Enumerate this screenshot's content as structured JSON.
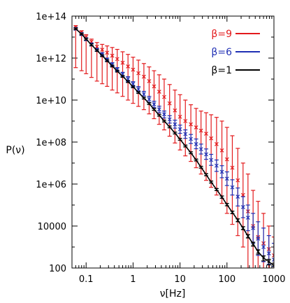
{
  "chart_data": {
    "type": "line",
    "title": "",
    "xlabel": "ν[Hz]",
    "ylabel": "P(ν)",
    "xscale": "log",
    "yscale": "log",
    "xlim": [
      0.05,
      1000
    ],
    "ylim": [
      100,
      100000000000000
    ],
    "grid": false,
    "legend_position": "top-right",
    "x_ticks": [
      {
        "value": 0.1,
        "label": "0.1"
      },
      {
        "value": 1,
        "label": "1"
      },
      {
        "value": 10,
        "label": "10"
      },
      {
        "value": 100,
        "label": "100"
      },
      {
        "value": 1000,
        "label": "1000"
      }
    ],
    "y_ticks": [
      {
        "value": 100,
        "label": "100"
      },
      {
        "value": 10000,
        "label": "10000"
      },
      {
        "value": 1000000,
        "label": "1e+06"
      },
      {
        "value": 100000000,
        "label": "1e+08"
      },
      {
        "value": 10000000000,
        "label": "1e+10"
      },
      {
        "value": 1000000000000,
        "label": "1e+12"
      },
      {
        "value": 100000000000000,
        "label": "1e+14"
      }
    ],
    "series": [
      {
        "name": "β=9",
        "color": "#e31a1c",
        "style": "errorbars",
        "x": [
          0.06,
          0.08,
          0.1,
          0.13,
          0.17,
          0.22,
          0.28,
          0.36,
          0.46,
          0.6,
          0.78,
          1.0,
          1.3,
          1.7,
          2.2,
          2.8,
          3.6,
          4.6,
          6.0,
          7.8,
          10,
          13,
          17,
          22,
          28,
          36,
          46,
          60,
          78,
          100,
          130,
          170,
          220,
          280,
          360,
          460,
          600,
          780,
          1000
        ],
        "y": [
          30000000000000.0,
          17000000000000.0,
          10000000000000.0,
          6000000000000.0,
          3500000000000.0,
          2500000000000.0,
          1800000000000.0,
          1300000000000.0,
          900000000000.0,
          600000000000.0,
          400000000000.0,
          280000000000.0,
          190000000000.0,
          130000000000.0,
          80000000000.0,
          45000000000.0,
          25000000000.0,
          14000000000.0,
          7000000000.0,
          3200000000.0,
          1600000000.0,
          1000000000.0,
          700000000.0,
          500000000.0,
          350000000.0,
          250000000.0,
          150000000.0,
          80000000.0,
          40000000.0,
          15000000.0,
          6000000.0,
          1500000.0,
          300000.0,
          50000.0,
          10000.0,
          3000.0,
          1500.0,
          800,
          400
        ],
        "err_lo": [
          350000000000.0,
          250000000000.0,
          180000000000.0,
          120000000000.0,
          80000000000.0,
          60000000000.0,
          45000000000.0,
          30000000000.0,
          22000000000.0,
          15000000000.0,
          10000000000.0,
          7000000000.0,
          5000000000.0,
          3500000000.0,
          2200000000.0,
          1300000000.0,
          700000000.0,
          380000000.0,
          190000000.0,
          90000000.0,
          42000000.0,
          22000000.0,
          12000000.0,
          6000000.0,
          3000000.0,
          1500000.0,
          700000.0,
          300000.0,
          120000.0,
          40000.0,
          12000.0,
          3500.0,
          1000.0,
          100,
          100,
          100,
          100,
          100,
          100
        ],
        "err_hi": [
          35000000000000.0,
          20000000000000.0,
          13000000000000.0,
          8000000000000.0,
          5500000000000.0,
          4500000000000.0,
          3800000000000.0,
          3200000000000.0,
          2600000000000.0,
          2000000000000.0,
          1500000000000.0,
          1100000000000.0,
          800000000000.0,
          550000000000.0,
          380000000000.0,
          250000000000.0,
          160000000000.0,
          100000000000.0,
          55000000000.0,
          30000000000.0,
          18000000000.0,
          10000000000.0,
          6000000000.0,
          4000000000.0,
          3000000000.0,
          2500000000.0,
          2000000000.0,
          1500000000.0,
          1000000000.0,
          500000000.0,
          200000000.0,
          50000000.0,
          10000000.0,
          3000000.0,
          500000.0,
          150000.0,
          40000.0,
          10000.0,
          3000.0
        ]
      },
      {
        "name": "β=6",
        "color": "#1f2fb4",
        "style": "errorbars",
        "x": [
          0.06,
          0.08,
          0.1,
          0.13,
          0.17,
          0.22,
          0.28,
          0.36,
          0.46,
          0.6,
          0.78,
          1.0,
          1.3,
          1.7,
          2.2,
          2.8,
          3.6,
          4.6,
          6.0,
          7.8,
          10,
          13,
          17,
          22,
          28,
          36,
          46,
          60,
          78,
          100,
          130,
          170,
          220,
          280,
          360,
          460,
          600,
          780,
          1000
        ],
        "y": [
          25000000000000.0,
          14000000000000.0,
          8000000000000.0,
          4500000000000.0,
          2500000000000.0,
          1500000000000.0,
          850000000000.0,
          500000000000.0,
          290000000000.0,
          170000000000.0,
          100000000000.0,
          58000000000.0,
          33000000000.0,
          19000000000.0,
          11000000000.0,
          6300000000.0,
          3600000000.0,
          2100000000.0,
          1200000000.0,
          700000000.0,
          410000000.0,
          240000000.0,
          140000000.0,
          80000000.0,
          46000000.0,
          26000000.0,
          14000000.0,
          7500000.0,
          3800000.0,
          1800000.0,
          700000.0,
          250000.0,
          80000.0,
          25000.0,
          8000.0,
          2500.0,
          1000.0,
          500,
          250
        ],
        "err_lo": [
          22000000000000.0,
          12000000000000.0,
          6800000000000.0,
          3800000000000.0,
          2100000000000.0,
          1200000000000.0,
          700000000000.0,
          410000000000.0,
          230000000000.0,
          130000000000.0,
          75000000000.0,
          43000000000.0,
          24000000000.0,
          14000000000.0,
          7800000000.0,
          4400000000.0,
          2500000000.0,
          1400000000.0,
          800000000.0,
          460000000.0,
          260000000.0,
          150000000.0,
          85000000.0,
          48000000.0,
          27000000.0,
          15000000.0,
          7800000.0,
          4000000.0,
          2000000.0,
          850000.0,
          300000.0,
          90000.0,
          25000.0,
          6000.0,
          1500.0,
          400,
          200,
          150,
          120
        ],
        "err_hi": [
          28000000000000.0,
          16000000000000.0,
          9200000000000.0,
          5200000000000.0,
          2900000000000.0,
          1800000000000.0,
          1000000000000.0,
          600000000000.0,
          350000000000.0,
          210000000000.0,
          130000000000.0,
          75000000000.0,
          44000000000.0,
          26000000000.0,
          15000000000.0,
          8800000000.0,
          5100000000.0,
          3000000000.0,
          1800000000.0,
          1100000000.0,
          640000000.0,
          380000000.0,
          230000000.0,
          140000000.0,
          80000000.0,
          47000000.0,
          26000000.0,
          14000000.0,
          7500000.0,
          3800000.0,
          1600000.0,
          650000.0,
          250000.0,
          100000.0,
          40000.0,
          16000.0,
          8000.0,
          3500.0,
          1500.0
        ]
      },
      {
        "name": "β=1",
        "color": "#000000",
        "style": "line",
        "x": [
          0.06,
          0.08,
          0.1,
          0.13,
          0.17,
          0.22,
          0.28,
          0.36,
          0.46,
          0.6,
          0.78,
          1.0,
          1.3,
          1.7,
          2.2,
          2.8,
          3.6,
          4.6,
          6.0,
          7.8,
          10,
          13,
          17,
          22,
          28,
          36,
          46,
          60,
          78,
          100,
          130,
          170,
          220,
          280,
          360,
          460,
          600,
          780,
          1000
        ],
        "y": [
          25000000000000.0,
          14000000000000.0,
          8000000000000.0,
          4300000000000.0,
          2300000000000.0,
          1300000000000.0,
          750000000000.0,
          420000000000.0,
          240000000000.0,
          135000000000.0,
          76000000000.0,
          43000000000.0,
          23000000000.0,
          12500000000.0,
          6800000000.0,
          3600000000.0,
          1900000000.0,
          1000000000.0,
          530000000.0,
          270000000.0,
          135000000.0,
          65000000.0,
          31000000.0,
          14000000.0,
          6300000.0,
          2800000.0,
          1250000.0,
          550000.0,
          240000.0,
          105000.0,
          45000.0,
          19000.0,
          8000.0,
          3300.0,
          1400.0,
          600,
          300,
          200,
          130
        ],
        "err_lo": [
          23000000000000.0,
          13000000000000.0,
          7300000000000.0,
          3900000000000.0,
          2100000000000.0,
          1180000000000.0,
          680000000000.0,
          380000000000.0,
          218000000000.0,
          122000000000.0,
          69000000000.0,
          39000000000.0,
          20900000000.0,
          11300000000.0,
          6200000000.0,
          3270000000.0,
          1730000000.0,
          910000000.0,
          480000000.0,
          245000000.0,
          122000000.0,
          59000000.0,
          28000000.0,
          12700000.0,
          5700000.0,
          2500000.0,
          1120000.0,
          490000.0,
          210000.0,
          92000.0,
          39000.0,
          16000.0,
          6700.0,
          2700.0,
          1100.0,
          460,
          220,
          140,
          100
        ],
        "err_hi": [
          27000000000000.0,
          15000000000000.0,
          8700000000000.0,
          4700000000000.0,
          2500000000000.0,
          1420000000000.0,
          820000000000.0,
          460000000000.0,
          262000000000.0,
          148000000000.0,
          83000000000.0,
          47000000000.0,
          25100000000.0,
          13700000000.0,
          7400000000.0,
          3930000000.0,
          2070000000.0,
          1090000000.0,
          580000000.0,
          295000000.0,
          148000000.0,
          71000000.0,
          34000000.0,
          15300000.0,
          6900000.0,
          3100000.0,
          1380000.0,
          610000.0,
          270000.0,
          118000.0,
          51000.0,
          22000.0,
          9300.0,
          3900.0,
          1700.0,
          740,
          380,
          260,
          170
        ]
      }
    ]
  }
}
